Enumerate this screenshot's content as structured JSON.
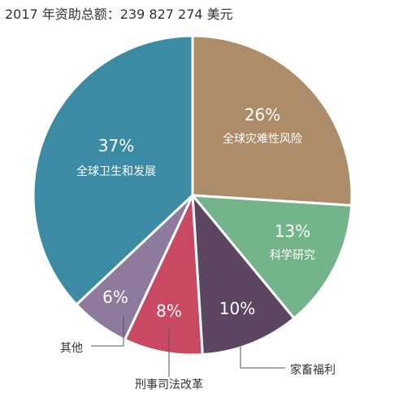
{
  "title": "2017 年资助总额：239 827 274 美元",
  "chart_data": {
    "type": "pie",
    "title": "2017 年资助总额：239 827 274 美元",
    "start_angle_deg": 0,
    "direction": "clockwise",
    "slices": [
      {
        "name": "全球灾难性风险",
        "value": 26,
        "label": "26%",
        "color": "#ad8d69"
      },
      {
        "name": "科学研究",
        "value": 13,
        "label": "13%",
        "color": "#74b48b"
      },
      {
        "name": "家畜福利",
        "value": 10,
        "label": "10%",
        "color": "#5c4560"
      },
      {
        "name": "刑事司法改革",
        "value": 8,
        "label": "8%",
        "color": "#c84961"
      },
      {
        "name": "其他",
        "value": 6,
        "label": "6%",
        "color": "#8e7a9c"
      },
      {
        "name": "全球卫生和发展",
        "value": 37,
        "label": "37%",
        "color": "#3b8ba4"
      }
    ]
  }
}
